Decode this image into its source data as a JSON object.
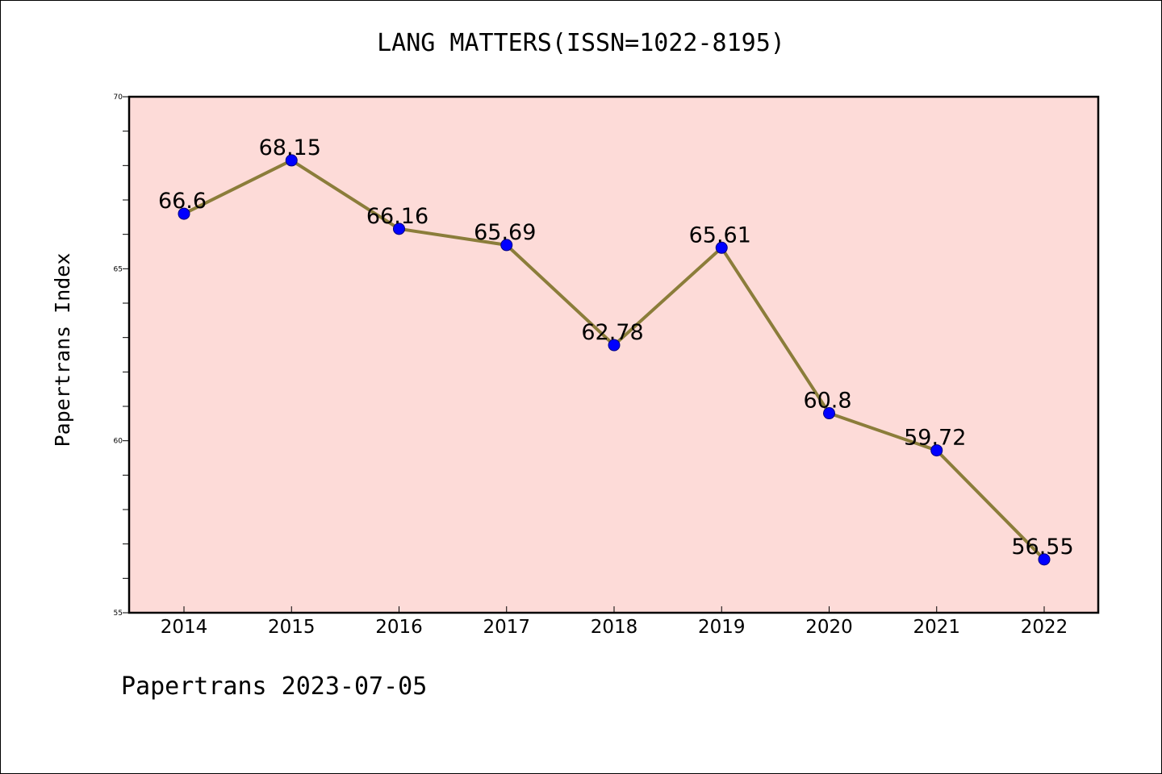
{
  "chart_data": {
    "type": "line",
    "title": "LANG MATTERS(ISSN=1022-8195)",
    "xlabel": "",
    "ylabel": "Papertrans Index",
    "categories": [
      "2014",
      "2015",
      "2016",
      "2017",
      "2018",
      "2019",
      "2020",
      "2021",
      "2022"
    ],
    "series": [
      {
        "values": [
          66.6,
          68.15,
          66.16,
          65.69,
          62.78,
          65.61,
          60.8,
          59.72,
          56.55
        ]
      }
    ],
    "data_labels": [
      "66.6",
      "68.15",
      "66.16",
      "65.69",
      "62.78",
      "65.61",
      "60.8",
      "59.72",
      "56.55"
    ],
    "ylim": [
      55,
      70
    ],
    "y_major_ticks": [
      55,
      60,
      65,
      70
    ],
    "y_minor_step": 1,
    "grid": false,
    "legend": "none",
    "colors": {
      "plot_background": "#fddbd8",
      "line": "#8b7d3a",
      "marker": "#0000ff",
      "marker_edge": "#000080",
      "axis": "#000000"
    }
  },
  "footer": {
    "text": "Papertrans 2023-07-05"
  }
}
